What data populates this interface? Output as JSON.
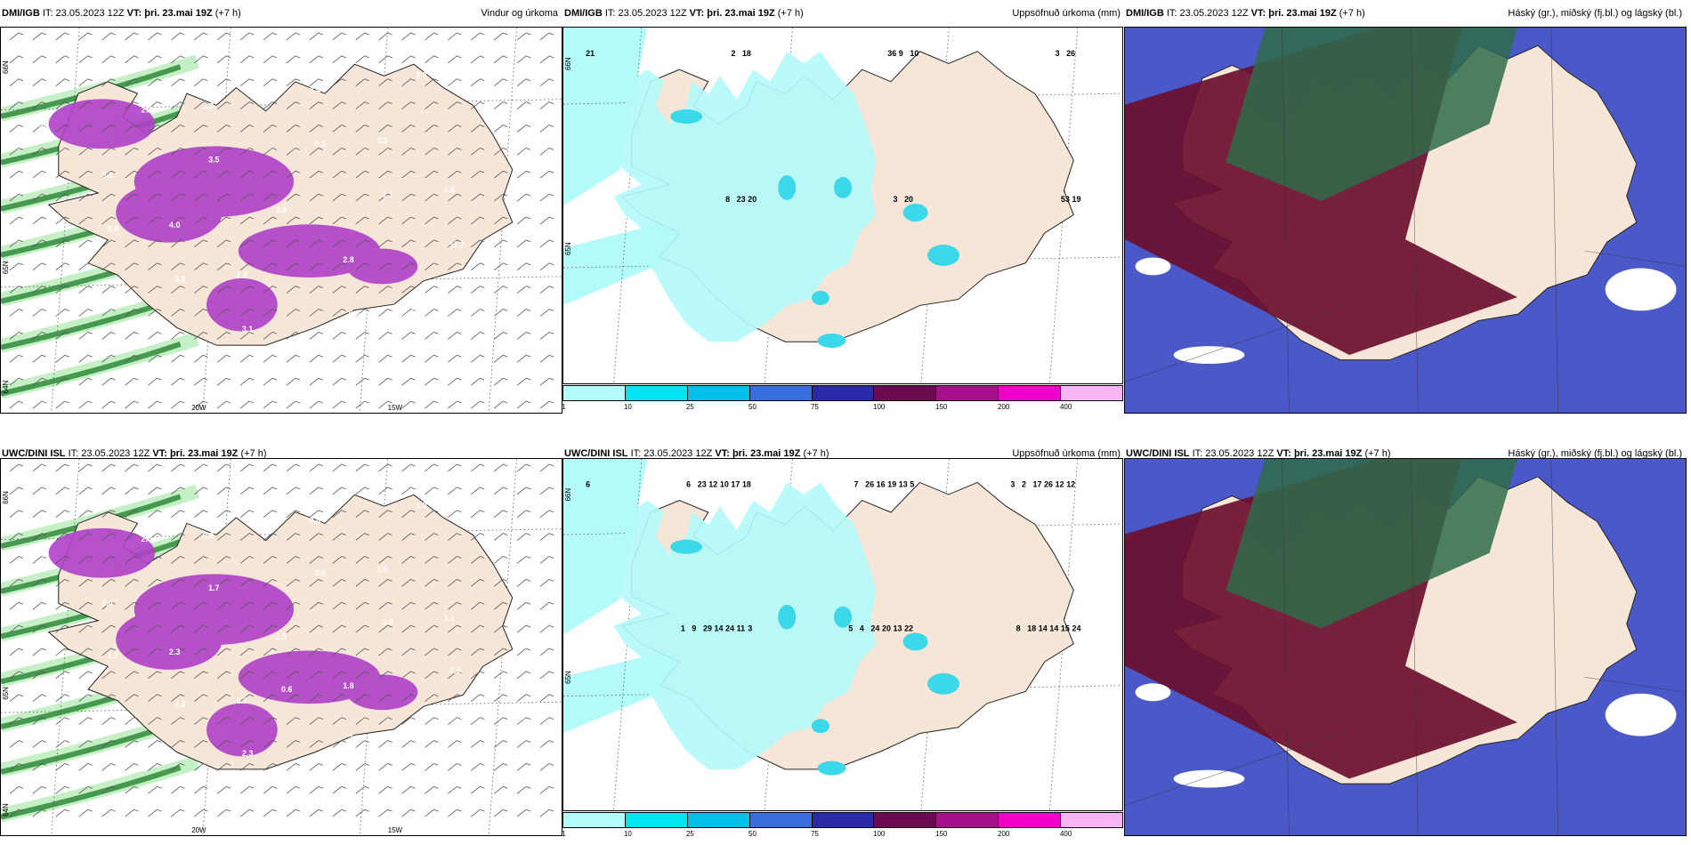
{
  "panels": [
    {
      "id": "p1",
      "model": "DMI/IGB",
      "it_label": "IT:",
      "it_value": "23.05.2023 12Z",
      "vt_label": "VT:",
      "vt_value": "þri. 23.mai 19Z",
      "lead": "(+7 h)",
      "right_title": "Vindur og úrkoma",
      "type": "wind",
      "lon_labels": [
        "20W",
        "15W"
      ],
      "lat_labels": [
        "66N",
        "65N",
        "64N"
      ],
      "values": [
        "3.6",
        "1.2",
        "4.6",
        "3.2",
        "1.0",
        "4.0",
        "3.2",
        "2.1",
        "2.8",
        "5.1",
        "2.4",
        "3.2",
        "3.9",
        "3.6",
        "3.1",
        "11.7",
        "3.5",
        "3.8",
        "3.6",
        "1.1",
        "2.2",
        "0.8",
        "0.6",
        "0.5"
      ]
    },
    {
      "id": "p2",
      "model": "DMI/IGB",
      "it_label": "IT:",
      "it_value": "23.05.2023 12Z",
      "vt_label": "VT:",
      "vt_value": "þri. 23.mai 19Z",
      "lead": "(+7 h)",
      "right_title": "Uppsöfnuð úrkoma (mm)",
      "type": "precip",
      "lat_labels": [
        "66N",
        "65N"
      ],
      "values": [
        "21",
        "20",
        "10",
        "19",
        "18",
        "20",
        "26",
        "23",
        "9",
        "53",
        "2",
        "3",
        "3",
        "8",
        "36"
      ]
    },
    {
      "id": "p3",
      "model": "DMI/IGB",
      "it_label": "IT:",
      "it_value": "23.05.2023 12Z",
      "vt_label": "VT:",
      "vt_value": "þri. 23.mai 19Z",
      "lead": "(+7 h)",
      "right_title": "Háský (gr.), miðský (fj.bl.) og lágský (bl.)",
      "type": "cloud"
    },
    {
      "id": "p4",
      "model": "UWC/DINI ISL",
      "it_label": "IT:",
      "it_value": "23.05.2023 12Z",
      "vt_label": "VT:",
      "vt_value": "þri. 23.mai 19Z",
      "lead": "(+7 h)",
      "right_title": "",
      "type": "wind",
      "lon_labels": [
        "20W",
        "15W"
      ],
      "lat_labels": [
        "66N",
        "65N",
        "64N"
      ],
      "values": [
        "0.5",
        "0.7",
        "1.1",
        "0.9",
        "3.2",
        "2.3",
        "1.6",
        "0.8",
        "1.8",
        "2.4",
        "0.8",
        "2.9",
        "1.5",
        "1.6",
        "2.3",
        "1.4",
        "1.7",
        "1.0",
        "2.8",
        "3.8",
        "2.0",
        "3.5",
        "1.7",
        "2.6",
        "3.0",
        "0.6",
        "0.5",
        "1.0",
        "2.2"
      ]
    },
    {
      "id": "p5",
      "model": "UWC/DINI ISL",
      "it_label": "IT:",
      "it_value": "23.05.2023 12Z",
      "vt_label": "VT:",
      "vt_value": "þri. 23.mai 19Z",
      "lead": "(+7 h)",
      "right_title": "Uppsöfnuð úrkoma (mm)",
      "type": "precip",
      "lat_labels": [
        "66N",
        "65N"
      ],
      "values": [
        "6",
        "3",
        "5",
        "24",
        "18",
        "22",
        "12",
        "11",
        "13",
        "15",
        "17",
        "13",
        "12",
        "24",
        "19",
        "14",
        "10",
        "20",
        "26",
        "14",
        "16",
        "14",
        "12",
        "24",
        "17",
        "29",
        "26",
        "18",
        "23",
        "4",
        "2",
        "9",
        "7",
        "8",
        "6",
        "5",
        "3",
        "1"
      ]
    },
    {
      "id": "p6",
      "model": "UWC/DINI ISL",
      "it_label": "IT:",
      "it_value": "23.05.2023 12Z",
      "vt_label": "VT:",
      "vt_value": "þri. 23.mai 19Z",
      "lead": "(+7 h)",
      "right_title": "Háský (gr.), miðský (fj.bl.) og lágský (bl.)",
      "type": "cloud"
    }
  ],
  "colorbar": {
    "colors": [
      "#b3fafa",
      "#00e6f0",
      "#00bfe8",
      "#3a6ee0",
      "#2a2aa8",
      "#6a0a50",
      "#a8108a",
      "#f000c8",
      "#f8b4f4"
    ],
    "labels": [
      "1",
      "10",
      "25",
      "50",
      "75",
      "100",
      "150",
      "200",
      "400"
    ]
  },
  "colors": {
    "land": "#f5e6d8",
    "precip_light": "#b3fafa",
    "precip_mid": "#3ad8e8",
    "wind_precip_green": "#2e8b3a",
    "wind_precip_light": "#bfeec0",
    "wind_precip_purple": "#b040c8",
    "cloud_high": "#6b0f2e",
    "cloud_mid": "#2f6b4a",
    "cloud_low": "#4b58c8"
  }
}
